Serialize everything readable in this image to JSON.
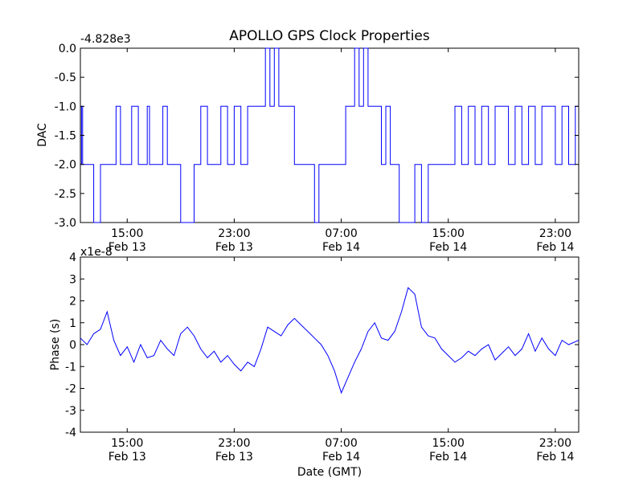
{
  "chart_data": [
    {
      "type": "line",
      "title": "APOLLO GPS Clock Properties",
      "ylabel": "DAC",
      "offset_text": "-4.828e3",
      "ylim": [
        -3.0,
        0.0
      ],
      "yticks": [
        "0.0",
        "-0.5",
        "-1.0",
        "-1.5",
        "-2.0",
        "-2.5",
        "-3.0"
      ],
      "xlim": [
        "Feb 13 11:30",
        "Feb 15 00:45"
      ],
      "xticks": [
        {
          "time": "15:00",
          "date": "Feb 13"
        },
        {
          "time": "23:00",
          "date": "Feb 13"
        },
        {
          "time": "07:00",
          "date": "Feb 14"
        },
        {
          "time": "15:00",
          "date": "Feb 14"
        },
        {
          "time": "23:00",
          "date": "Feb 14"
        }
      ],
      "color": "#0000ff",
      "series": [
        {
          "x": [
            "Feb 13 11:30",
            "Feb 13 11:35",
            "Feb 13 11:40",
            "Feb 13 11:45",
            "Feb 13 11:55",
            "Feb 13 12:10",
            "Feb 13 12:30",
            "Feb 13 13:00",
            "Feb 13 13:20",
            "Feb 13 13:25",
            "Feb 13 13:50",
            "Feb 13 14:10",
            "Feb 13 14:30",
            "Feb 13 15:00",
            "Feb 13 15:20",
            "Feb 13 15:50",
            "Feb 13 16:10",
            "Feb 13 16:30",
            "Feb 13 16:40",
            "Feb 13 17:00",
            "Feb 13 17:40",
            "Feb 13 18:00",
            "Feb 13 18:40",
            "Feb 13 19:00",
            "Feb 13 20:00",
            "Feb 13 20:20",
            "Feb 13 20:30",
            "Feb 13 21:00",
            "Feb 13 22:00",
            "Feb 13 22:30",
            "Feb 13 23:00",
            "Feb 13 23:30",
            "Feb 14 00:00",
            "Feb 14 00:30",
            "Feb 14 01:00",
            "Feb 14 01:20",
            "Feb 14 01:40",
            "Feb 14 02:00",
            "Feb 14 02:20",
            "Feb 14 02:40",
            "Feb 14 03:00",
            "Feb 14 03:30",
            "Feb 14 04:00",
            "Feb 14 04:20",
            "Feb 14 04:40",
            "Feb 14 05:00",
            "Feb 14 05:20",
            "Feb 14 05:40",
            "Feb 14 06:00",
            "Feb 14 06:20",
            "Feb 14 06:40",
            "Feb 14 07:00",
            "Feb 14 07:20",
            "Feb 14 07:40",
            "Feb 14 08:00",
            "Feb 14 08:20",
            "Feb 14 08:40",
            "Feb 14 09:00",
            "Feb 14 09:20",
            "Feb 14 09:40",
            "Feb 14 10:00",
            "Feb 14 10:20",
            "Feb 14 10:40",
            "Feb 14 11:00",
            "Feb 14 11:20",
            "Feb 14 11:40",
            "Feb 14 12:00",
            "Feb 14 12:30",
            "Feb 14 13:00",
            "Feb 14 13:30",
            "Feb 14 14:00",
            "Feb 14 14:30",
            "Feb 14 15:00",
            "Feb 14 15:30",
            "Feb 14 16:00",
            "Feb 14 16:30",
            "Feb 14 17:00",
            "Feb 14 17:30",
            "Feb 14 18:00",
            "Feb 14 18:30",
            "Feb 14 19:00",
            "Feb 14 19:30",
            "Feb 14 20:00",
            "Feb 14 20:30",
            "Feb 14 21:00",
            "Feb 14 21:30",
            "Feb 14 22:00",
            "Feb 14 22:30",
            "Feb 14 23:00",
            "Feb 14 23:30",
            "Feb 15 00:00",
            "Feb 15 00:30",
            "Feb 15 00:45"
          ],
          "y": [
            -2,
            -1,
            -2,
            -2,
            -2,
            -2,
            -3,
            -2,
            -2,
            -2,
            -2,
            -1,
            -2,
            -2,
            -1,
            -2,
            -2,
            -1,
            -2,
            -2,
            -1,
            -2,
            -2,
            -3,
            -2,
            -2,
            -1,
            -2,
            -1,
            -2,
            -1,
            -2,
            -1,
            -1,
            -1,
            0,
            -1,
            0,
            -1,
            -1,
            -1,
            -2,
            -2,
            -2,
            -2,
            -3,
            -2,
            -2,
            -2,
            -2,
            -2,
            -2,
            -1,
            -1,
            0,
            -1,
            0,
            -1,
            -1,
            -1,
            -2,
            -1,
            -2,
            -2,
            -3,
            -3,
            -3,
            -2,
            -3,
            -2,
            -2,
            -2,
            -2,
            -1,
            -2,
            -1,
            -2,
            -1,
            -2,
            -1,
            -1,
            -2,
            -1,
            -2,
            -1,
            -2,
            -1,
            -1,
            -2,
            -1,
            -2,
            -1,
            -1
          ]
        }
      ]
    },
    {
      "type": "line",
      "ylabel": "Phase (s)",
      "xlabel": "Date (GMT)",
      "offset_text": "x1e-8",
      "ylim": [
        -4,
        4
      ],
      "yticks": [
        "4",
        "3",
        "2",
        "1",
        "0",
        "-1",
        "-2",
        "-3",
        "-4"
      ],
      "xlim": [
        "Feb 13 11:30",
        "Feb 15 00:45"
      ],
      "xticks": [
        {
          "time": "15:00",
          "date": "Feb 13"
        },
        {
          "time": "23:00",
          "date": "Feb 13"
        },
        {
          "time": "07:00",
          "date": "Feb 14"
        },
        {
          "time": "15:00",
          "date": "Feb 14"
        },
        {
          "time": "23:00",
          "date": "Feb 14"
        }
      ],
      "color": "#0000ff",
      "series": [
        {
          "x": [
            "Feb 13 11:30",
            "Feb 13 12:00",
            "Feb 13 12:30",
            "Feb 13 13:00",
            "Feb 13 13:30",
            "Feb 13 14:00",
            "Feb 13 14:30",
            "Feb 13 15:00",
            "Feb 13 15:30",
            "Feb 13 16:00",
            "Feb 13 16:30",
            "Feb 13 17:00",
            "Feb 13 17:30",
            "Feb 13 18:00",
            "Feb 13 18:30",
            "Feb 13 19:00",
            "Feb 13 19:30",
            "Feb 13 20:00",
            "Feb 13 20:30",
            "Feb 13 21:00",
            "Feb 13 21:30",
            "Feb 13 22:00",
            "Feb 13 22:30",
            "Feb 13 23:00",
            "Feb 13 23:30",
            "Feb 14 00:00",
            "Feb 14 00:30",
            "Feb 14 01:00",
            "Feb 14 01:30",
            "Feb 14 02:00",
            "Feb 14 02:30",
            "Feb 14 03:00",
            "Feb 14 03:30",
            "Feb 14 04:00",
            "Feb 14 04:30",
            "Feb 14 05:00",
            "Feb 14 05:30",
            "Feb 14 06:00",
            "Feb 14 06:30",
            "Feb 14 07:00",
            "Feb 14 07:30",
            "Feb 14 08:00",
            "Feb 14 08:30",
            "Feb 14 09:00",
            "Feb 14 09:30",
            "Feb 14 10:00",
            "Feb 14 10:30",
            "Feb 14 11:00",
            "Feb 14 11:30",
            "Feb 14 12:00",
            "Feb 14 12:30",
            "Feb 14 13:00",
            "Feb 14 13:30",
            "Feb 14 14:00",
            "Feb 14 14:30",
            "Feb 14 15:00",
            "Feb 14 15:30",
            "Feb 14 16:00",
            "Feb 14 16:30",
            "Feb 14 17:00",
            "Feb 14 17:30",
            "Feb 14 18:00",
            "Feb 14 18:30",
            "Feb 14 19:00",
            "Feb 14 19:30",
            "Feb 14 20:00",
            "Feb 14 20:30",
            "Feb 14 21:00",
            "Feb 14 21:30",
            "Feb 14 22:00",
            "Feb 14 22:30",
            "Feb 14 23:00",
            "Feb 14 23:30",
            "Feb 15 00:00",
            "Feb 15 00:45"
          ],
          "y": [
            0.3,
            0.0,
            0.5,
            0.7,
            1.5,
            0.2,
            -0.5,
            -0.1,
            -0.8,
            0.0,
            -0.6,
            -0.5,
            0.2,
            -0.2,
            -0.5,
            0.5,
            0.8,
            0.4,
            -0.2,
            -0.6,
            -0.3,
            -0.8,
            -0.5,
            -0.9,
            -1.2,
            -0.8,
            -1.0,
            -0.2,
            0.8,
            0.6,
            0.4,
            0.9,
            1.2,
            0.9,
            0.6,
            0.3,
            0.0,
            -0.5,
            -1.2,
            -2.2,
            -1.5,
            -0.8,
            -0.2,
            0.6,
            1.0,
            0.3,
            0.2,
            0.6,
            1.5,
            2.6,
            2.3,
            0.8,
            0.4,
            0.3,
            -0.2,
            -0.5,
            -0.8,
            -0.6,
            -0.3,
            -0.5,
            -0.2,
            0.0,
            -0.7,
            -0.4,
            -0.1,
            -0.5,
            -0.2,
            0.5,
            -0.3,
            0.3,
            -0.2,
            -0.5,
            0.2,
            0.0,
            0.2
          ]
        }
      ]
    }
  ]
}
